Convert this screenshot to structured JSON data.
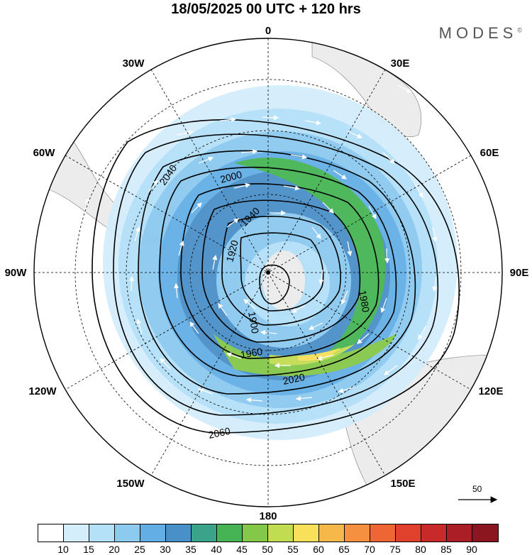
{
  "title": "18/05/2025  00 UTC  + 120 hrs",
  "brand": "MODES",
  "brand_mark": "©",
  "map": {
    "projection": "south-polar-stereographic",
    "longitude_labels": [
      {
        "text": "0",
        "lon": 0
      },
      {
        "text": "30E",
        "lon": 30
      },
      {
        "text": "60E",
        "lon": 60
      },
      {
        "text": "90E",
        "lon": 90
      },
      {
        "text": "120E",
        "lon": 120
      },
      {
        "text": "150E",
        "lon": 150
      },
      {
        "text": "180",
        "lon": 180
      },
      {
        "text": "150W",
        "lon": -150
      },
      {
        "text": "120W",
        "lon": -120
      },
      {
        "text": "90W",
        "lon": -90
      },
      {
        "text": "60W",
        "lon": -60
      },
      {
        "text": "30W",
        "lon": -30
      }
    ],
    "contour_labels": [
      "1900",
      "1920",
      "1940",
      "1960",
      "1980",
      "2000",
      "2020",
      "2040",
      "2060"
    ],
    "reference_vector_label": "50"
  },
  "colorbar": {
    "colors": [
      "#ffffff",
      "#d4eefc",
      "#b4e0f8",
      "#8ccaf0",
      "#64aee6",
      "#4a90c8",
      "#3aa38a",
      "#46b454",
      "#84c84a",
      "#c2dc52",
      "#f8e05a",
      "#f6b84a",
      "#f49040",
      "#ee6634",
      "#e0412c",
      "#c82a2a",
      "#ac1e26",
      "#8c1620"
    ],
    "ticks": [
      "10",
      "15",
      "20",
      "25",
      "30",
      "35",
      "40",
      "45",
      "50",
      "55",
      "60",
      "65",
      "70",
      "75",
      "80",
      "85",
      "90"
    ]
  }
}
